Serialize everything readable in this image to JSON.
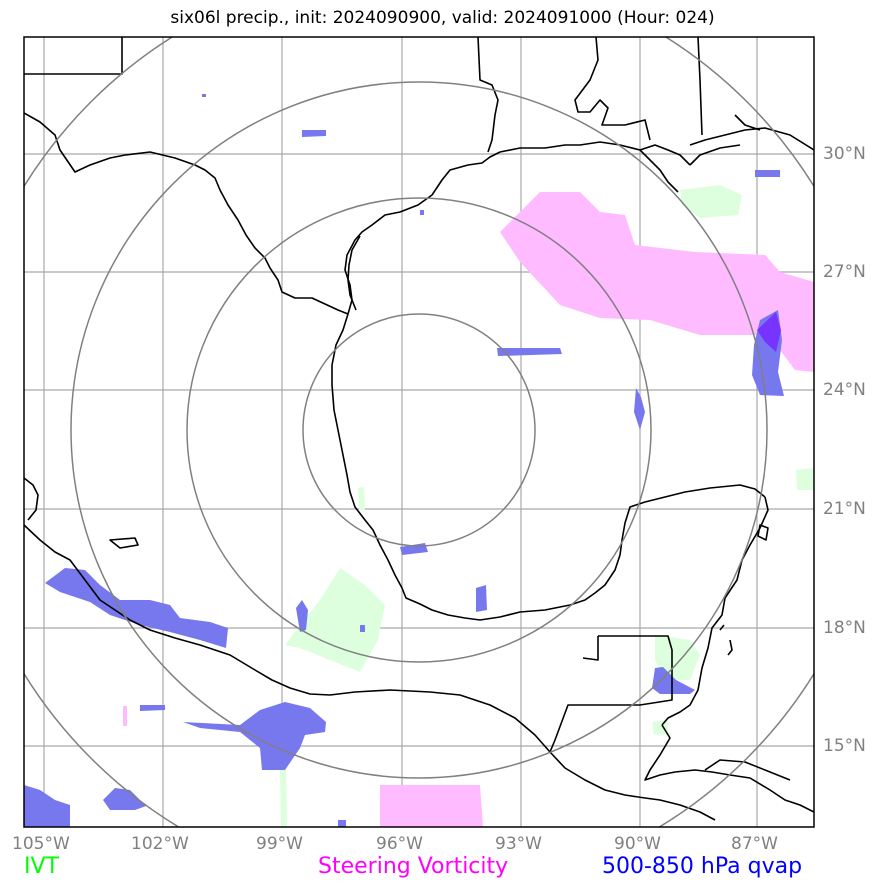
{
  "title": "six06l precip., init: 2024090900, valid: 2024091000 (Hour: 024)",
  "lat_labels": [
    "30°N",
    "27°N",
    "24°N",
    "21°N",
    "18°N",
    "15°N"
  ],
  "lon_labels": [
    "105°W",
    "102°W",
    "99°W",
    "96°W",
    "93°W",
    "90°W",
    "87°W"
  ],
  "legend": {
    "ivt": {
      "label": "IVT",
      "color": "#00ff00"
    },
    "vorticity": {
      "label": "Steering Vorticity",
      "color": "#ff00ff"
    },
    "qvap": {
      "label": "500-850 hPa qvap",
      "color": "#0000ff"
    }
  },
  "colors": {
    "grid": "#a9a9a9",
    "range_rings": "#808080",
    "coastline": "#000000",
    "ivt_fill": "#ddffdd",
    "vorticity_fill": "#ffbbff",
    "qvap_fill": "#7777ee"
  }
}
